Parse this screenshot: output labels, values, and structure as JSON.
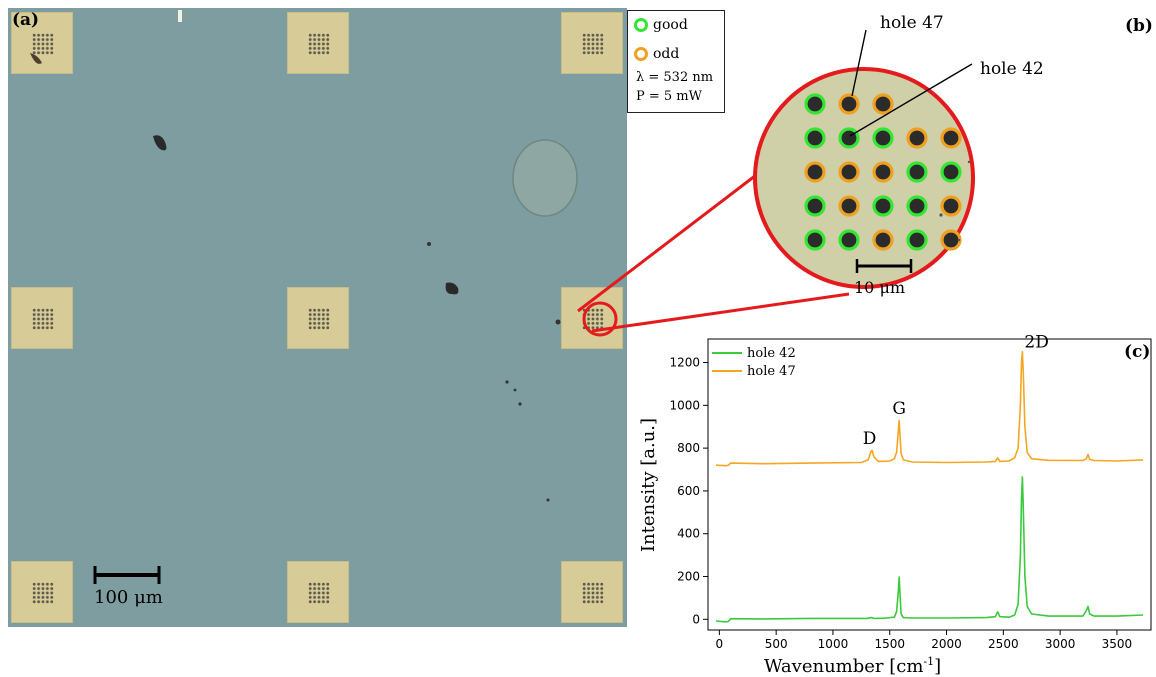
{
  "panel_a": {
    "label": "(a)",
    "scalebar": "100 μm"
  },
  "panel_b": {
    "label": "(b)",
    "legend": {
      "good": "good",
      "odd": "odd",
      "wavelength": "λ = 532 nm",
      "power": "P = 5 mW"
    },
    "hole47": "hole 47",
    "hole42": "hole 42",
    "scalebar": "10 μm",
    "colors": {
      "good": "#32e632",
      "odd": "#f0a020",
      "circle": "#e41a1c",
      "bg": "#cfcfa8"
    },
    "grid": [
      [
        "good",
        "odd",
        "odd"
      ],
      [
        "good",
        "good",
        "good",
        "odd",
        "odd"
      ],
      [
        "odd",
        "odd",
        "odd",
        "good",
        "good"
      ],
      [
        "good",
        "odd",
        "good",
        "good",
        "odd"
      ],
      [
        "good",
        "good",
        "odd",
        "good",
        "odd"
      ]
    ]
  },
  "chart_data": {
    "type": "line",
    "label": "(c)",
    "xlabel": "Wavenumber [cm",
    "xlabel_sup": "-1",
    "xlabel_end": "]",
    "ylabel": "Intensity [a.u.]",
    "xlim": [
      -100,
      3800
    ],
    "ylim": [
      -50,
      1310
    ],
    "xticks": [
      0,
      500,
      1000,
      1500,
      2000,
      2500,
      3000,
      3500
    ],
    "yticks": [
      0,
      200,
      400,
      600,
      800,
      1000,
      1200
    ],
    "legend_position": "top-left",
    "series": [
      {
        "name": "hole 42",
        "color": "#3cc93c",
        "x": [
          -30,
          60,
          80,
          100,
          400,
          800,
          1300,
          1340,
          1360,
          1450,
          1540,
          1560,
          1575,
          1583,
          1590,
          1600,
          1620,
          1700,
          2000,
          2350,
          2430,
          2450,
          2470,
          2550,
          2600,
          2630,
          2650,
          2660,
          2668,
          2676,
          2690,
          2710,
          2750,
          2900,
          3200,
          3230,
          3245,
          3260,
          3300,
          3500,
          3730
        ],
        "y": [
          -8,
          -12,
          -10,
          3,
          2,
          4,
          4,
          8,
          4,
          5,
          10,
          35,
          130,
          197,
          120,
          25,
          8,
          6,
          6,
          8,
          12,
          35,
          12,
          10,
          20,
          70,
          300,
          560,
          665,
          520,
          200,
          60,
          25,
          15,
          15,
          40,
          60,
          25,
          15,
          15,
          20
        ]
      },
      {
        "name": "hole 47",
        "color": "#f5a623",
        "x": [
          -30,
          60,
          80,
          100,
          400,
          800,
          1250,
          1310,
          1335,
          1345,
          1360,
          1400,
          1500,
          1540,
          1560,
          1575,
          1583,
          1590,
          1600,
          1620,
          1700,
          2000,
          2350,
          2430,
          2450,
          2470,
          2550,
          2600,
          2630,
          2650,
          2660,
          2668,
          2676,
          2690,
          2710,
          2750,
          2900,
          3200,
          3230,
          3245,
          3260,
          3300,
          3500,
          3730
        ],
        "y": [
          720,
          718,
          720,
          730,
          727,
          730,
          733,
          745,
          785,
          790,
          760,
          738,
          740,
          750,
          780,
          880,
          930,
          860,
          775,
          745,
          735,
          733,
          735,
          738,
          755,
          738,
          740,
          755,
          800,
          1000,
          1200,
          1250,
          1150,
          900,
          780,
          750,
          743,
          742,
          750,
          770,
          748,
          742,
          740,
          745
        ]
      }
    ],
    "annotations": [
      {
        "text": "D",
        "x": 1340,
        "y": 820
      },
      {
        "text": "G",
        "x": 1583,
        "y": 960
      },
      {
        "text": "2D",
        "x": 2670,
        "y": 1270
      }
    ]
  }
}
